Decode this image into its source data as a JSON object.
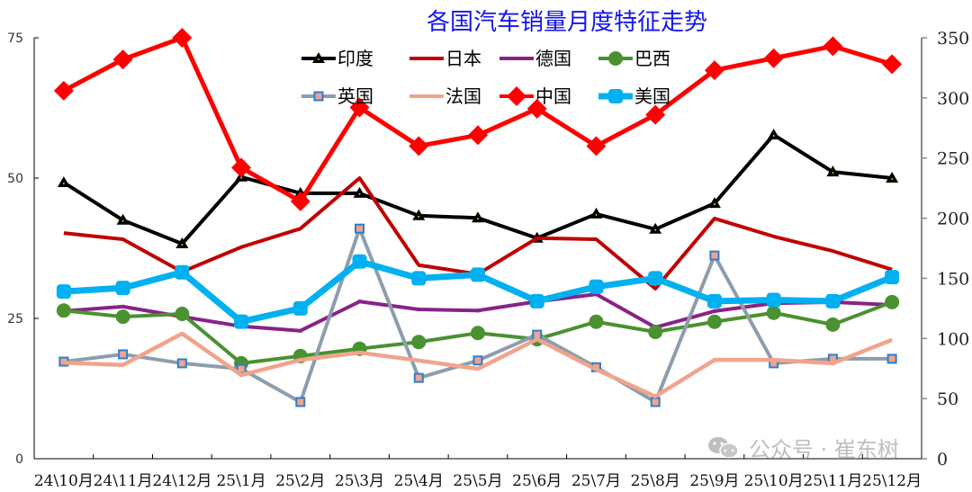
{
  "chart_data": {
    "type": "line",
    "title": "各国汽车销量月度特征走势",
    "xlabel": "",
    "ylabel_left": "",
    "ylabel_right": "",
    "ylim_left": [
      0,
      75
    ],
    "ylim_right": [
      0,
      350
    ],
    "yticks_left": [
      0,
      25,
      50,
      75
    ],
    "yticks_right": [
      0,
      50,
      100,
      150,
      200,
      250,
      300,
      350
    ],
    "grid": false,
    "legend_position": "top-center",
    "categories": [
      "24\\10月",
      "24\\11月",
      "24\\12月",
      "25\\1月",
      "25\\2月",
      "25\\3月",
      "25\\4月",
      "25\\5月",
      "25\\6月",
      "25\\7月",
      "25\\8月",
      "25\\9月",
      "25\\10月",
      "25\\11月",
      "25\\12月"
    ],
    "series": [
      {
        "name": "印度",
        "axis": "left",
        "color": "#000000",
        "marker": "triangle",
        "values": [
          49.2,
          42.5,
          38.3,
          50.2,
          47.3,
          47.3,
          43.3,
          42.9,
          39.3,
          43.6,
          40.9,
          45.5,
          57.7,
          51.1,
          50.0
        ]
      },
      {
        "name": "日本",
        "axis": "left",
        "color": "#C00000",
        "marker": "none",
        "values": [
          40.2,
          39.1,
          33.3,
          37.7,
          41.0,
          50.0,
          34.5,
          32.9,
          39.3,
          39.1,
          30.3,
          42.8,
          39.6,
          37.0,
          33.7
        ]
      },
      {
        "name": "德国",
        "axis": "left",
        "color": "#882288",
        "marker": "small",
        "values": [
          26.3,
          27.1,
          25.3,
          23.6,
          22.8,
          28.0,
          26.6,
          26.4,
          28.0,
          29.3,
          23.4,
          26.3,
          27.7,
          27.9,
          27.4
        ]
      },
      {
        "name": "巴西",
        "axis": "left",
        "color": "#4A9130",
        "marker": "circle",
        "values": [
          26.4,
          25.3,
          25.8,
          17.0,
          18.3,
          19.6,
          20.8,
          22.4,
          21.3,
          24.4,
          22.6,
          24.4,
          26.0,
          23.9,
          27.9
        ]
      },
      {
        "name": "英国",
        "axis": "left",
        "color": "#8C9DAE",
        "marker": "square",
        "values": [
          17.3,
          18.6,
          17.0,
          16.0,
          10.1,
          41.0,
          14.4,
          17.5,
          22.1,
          16.3,
          10.1,
          36.2,
          17.0,
          17.8,
          17.8
        ]
      },
      {
        "name": "法国",
        "axis": "left",
        "color": "#F0A48C",
        "marker": "none",
        "values": [
          17.1,
          16.7,
          22.3,
          14.9,
          17.6,
          18.9,
          17.5,
          16.0,
          21.3,
          15.9,
          11.1,
          17.6,
          17.6,
          17.0,
          21.2
        ]
      },
      {
        "name": "中国",
        "axis": "right",
        "color": "#FF0000",
        "marker": "diamond",
        "values": [
          306,
          332,
          350,
          242,
          214,
          292,
          260,
          269,
          291,
          260,
          286,
          323,
          333,
          343,
          328
        ]
      },
      {
        "name": "美国",
        "axis": "right",
        "color": "#00B0F0",
        "marker": "rounded-square",
        "values": [
          139,
          142,
          155,
          114,
          125,
          164,
          150,
          153,
          131,
          143,
          150,
          131,
          132,
          131,
          151
        ]
      }
    ]
  },
  "watermark": {
    "text": "公众号 · 崔东树",
    "icon": "wechat-icon"
  }
}
